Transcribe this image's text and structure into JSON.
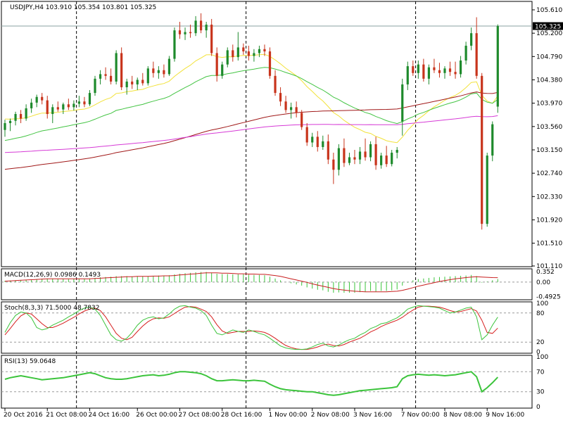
{
  "main_label": "USDJPY,H4  103.910 105.354 103.801 105.325",
  "macd_label": "MACD(12,26,9) 0.0986 0.1493",
  "stoch_label": "Stoch(8,3,3) 71.5000 48.7832",
  "rsi_label": "RSI(13) 59.0648",
  "current_price_label": "105.325",
  "colors": {
    "background": "#ffffff",
    "bull_candle": "#1e8a2c",
    "bear_candle": "#c8341c",
    "wick": "#333333",
    "ma_fast": "#f2e23a",
    "ma_mid": "#43c443",
    "ma_slow": "#a01818",
    "ma_long": "#d63ad6",
    "macd_hist": "#3cc43c",
    "macd_signal": "#c81e1e",
    "stoch_main": "#3cc43c",
    "stoch_signal": "#d61e1e",
    "rsi_line": "#3cc43c",
    "grid_dash": "#000000",
    "level_dash": "#9a9a9a",
    "price_line": "#8aa0a0"
  },
  "chart_data": [
    {
      "type": "candlestick",
      "series_label": "USDJPY,H4",
      "ohlc_last": {
        "open": 103.91,
        "high": 105.354,
        "low": 103.801,
        "close": 105.325
      },
      "y_ticks": [
        101.11,
        101.51,
        101.92,
        102.33,
        102.74,
        103.15,
        103.56,
        103.97,
        104.38,
        104.79,
        105.2,
        105.61
      ],
      "ylim": [
        101.11,
        105.61
      ],
      "x_ticks": [
        "20 Oct 2016",
        "21 Oct 08:00",
        "24 Oct 16:00",
        "26 Oct 00:00",
        "27 Oct 08:00",
        "28 Oct 16:00",
        "1 Nov 00:00",
        "2 Nov 08:00",
        "3 Nov 16:00",
        "7 Nov 00:00",
        "8 Nov 08:00",
        "9 Nov 16:00"
      ],
      "current_price": 105.325,
      "candles": [
        [
          103.5,
          103.68,
          103.38,
          103.62
        ],
        [
          103.62,
          103.7,
          103.48,
          103.66
        ],
        [
          103.66,
          103.82,
          103.58,
          103.78
        ],
        [
          103.78,
          103.85,
          103.62,
          103.7
        ],
        [
          103.7,
          103.95,
          103.66,
          103.88
        ],
        [
          103.88,
          104.05,
          103.8,
          103.98
        ],
        [
          103.98,
          104.12,
          103.9,
          104.08
        ],
        [
          104.08,
          104.15,
          103.95,
          104.02
        ],
        [
          104.02,
          104.1,
          103.7,
          103.78
        ],
        [
          103.78,
          103.95,
          103.62,
          103.9
        ],
        [
          103.9,
          104.0,
          103.82,
          103.86
        ],
        [
          103.86,
          103.98,
          103.78,
          103.95
        ],
        [
          103.95,
          104.05,
          103.85,
          103.9
        ],
        [
          103.9,
          104.02,
          103.84,
          103.96
        ],
        [
          103.96,
          104.1,
          103.9,
          104.0
        ],
        [
          104.0,
          104.08,
          103.9,
          103.95
        ],
        [
          103.95,
          104.2,
          103.92,
          104.15
        ],
        [
          104.15,
          104.45,
          104.1,
          104.4
        ],
        [
          104.4,
          104.55,
          104.3,
          104.48
        ],
        [
          104.48,
          104.6,
          104.38,
          104.45
        ],
        [
          104.45,
          104.58,
          104.3,
          104.35
        ],
        [
          104.35,
          104.9,
          104.3,
          104.85
        ],
        [
          104.85,
          104.95,
          104.2,
          104.25
        ],
        [
          104.25,
          104.4,
          104.12,
          104.35
        ],
        [
          104.35,
          104.45,
          104.22,
          104.3
        ],
        [
          104.3,
          104.42,
          104.2,
          104.38
        ],
        [
          104.38,
          104.5,
          104.28,
          104.32
        ],
        [
          104.32,
          104.62,
          104.28,
          104.58
        ],
        [
          104.58,
          104.7,
          104.42,
          104.5
        ],
        [
          104.5,
          104.62,
          104.4,
          104.55
        ],
        [
          104.55,
          104.65,
          104.42,
          104.48
        ],
        [
          104.48,
          104.8,
          104.45,
          104.75
        ],
        [
          104.75,
          105.3,
          104.7,
          105.25
        ],
        [
          105.25,
          105.4,
          105.1,
          105.18
        ],
        [
          105.18,
          105.3,
          105.08,
          105.22
        ],
        [
          105.22,
          105.35,
          105.12,
          105.2
        ],
        [
          105.2,
          105.5,
          105.15,
          105.42
        ],
        [
          105.42,
          105.55,
          105.2,
          105.25
        ],
        [
          105.25,
          105.4,
          105.12,
          105.35
        ],
        [
          105.35,
          105.45,
          104.8,
          104.85
        ],
        [
          104.85,
          104.95,
          104.35,
          104.45
        ],
        [
          104.45,
          104.7,
          104.4,
          104.65
        ],
        [
          104.65,
          104.95,
          104.6,
          104.9
        ],
        [
          104.9,
          105.0,
          104.7,
          104.78
        ],
        [
          104.78,
          105.22,
          104.72,
          104.95
        ],
        [
          104.95,
          105.02,
          104.82,
          104.88
        ],
        [
          104.88,
          104.98,
          104.72,
          104.8
        ],
        [
          104.8,
          104.92,
          104.7,
          104.85
        ],
        [
          104.85,
          104.98,
          104.78,
          104.92
        ],
        [
          104.92,
          105.0,
          104.8,
          104.88
        ],
        [
          104.88,
          104.95,
          104.4,
          104.45
        ],
        [
          104.45,
          104.55,
          104.1,
          104.15
        ],
        [
          104.15,
          104.25,
          103.92,
          104.0
        ],
        [
          104.0,
          104.1,
          103.8,
          103.85
        ],
        [
          103.85,
          103.98,
          103.7,
          103.9
        ],
        [
          103.9,
          104.0,
          103.72,
          103.8
        ],
        [
          103.8,
          103.85,
          103.5,
          103.55
        ],
        [
          103.55,
          103.62,
          103.22,
          103.28
        ],
        [
          103.28,
          103.45,
          103.2,
          103.38
        ],
        [
          103.38,
          103.48,
          103.12,
          103.2
        ],
        [
          103.2,
          103.4,
          103.15,
          103.3
        ],
        [
          103.3,
          103.42,
          102.9,
          102.98
        ],
        [
          102.98,
          103.1,
          102.55,
          102.8
        ],
        [
          102.8,
          103.25,
          102.7,
          103.18
        ],
        [
          103.18,
          103.35,
          102.85,
          102.92
        ],
        [
          102.92,
          103.1,
          102.88,
          103.02
        ],
        [
          103.02,
          103.15,
          102.9,
          102.98
        ],
        [
          102.98,
          103.2,
          102.9,
          103.12
        ],
        [
          103.12,
          103.35,
          102.96,
          103.02
        ],
        [
          103.02,
          103.3,
          102.95,
          103.25
        ],
        [
          103.25,
          103.38,
          102.8,
          102.88
        ],
        [
          102.88,
          103.1,
          102.82,
          103.05
        ],
        [
          103.05,
          103.22,
          102.85,
          102.9
        ],
        [
          102.9,
          103.15,
          102.86,
          103.1
        ],
        [
          103.1,
          103.2,
          103.0,
          103.15
        ],
        [
          103.65,
          104.4,
          103.4,
          104.3
        ],
        [
          104.3,
          104.7,
          104.2,
          104.62
        ],
        [
          104.62,
          104.72,
          104.45,
          104.5
        ],
        [
          104.5,
          104.72,
          104.4,
          104.65
        ],
        [
          104.65,
          104.75,
          104.35,
          104.4
        ],
        [
          104.4,
          104.65,
          104.3,
          104.6
        ],
        [
          104.6,
          104.75,
          104.5,
          104.55
        ],
        [
          104.55,
          104.68,
          104.42,
          104.5
        ],
        [
          104.5,
          104.62,
          104.4,
          104.58
        ],
        [
          104.58,
          104.7,
          104.45,
          104.52
        ],
        [
          104.52,
          104.7,
          104.4,
          104.48
        ],
        [
          104.48,
          104.8,
          104.42,
          104.72
        ],
        [
          104.72,
          105.05,
          104.65,
          104.98
        ],
        [
          104.98,
          105.3,
          104.9,
          105.2
        ],
        [
          105.2,
          105.48,
          104.4,
          104.45
        ],
        [
          104.45,
          104.5,
          101.75,
          101.85
        ],
        [
          101.85,
          103.1,
          101.8,
          103.05
        ],
        [
          103.05,
          103.65,
          102.95,
          103.6
        ],
        [
          103.91,
          105.354,
          103.801,
          105.325
        ]
      ]
    },
    {
      "type": "line",
      "series_label": "MACD(12,26,9)",
      "values_last": {
        "macd": 0.0986,
        "signal": 0.1493
      },
      "y_ticks": [
        0.352,
        0.0,
        -0.4925
      ],
      "ylim": [
        -0.55,
        0.4
      ],
      "histogram": [
        0.04,
        0.05,
        0.06,
        0.07,
        0.08,
        0.09,
        0.1,
        0.11,
        0.12,
        0.12,
        0.11,
        0.11,
        0.1,
        0.11,
        0.11,
        0.11,
        0.12,
        0.14,
        0.16,
        0.17,
        0.18,
        0.2,
        0.2,
        0.2,
        0.19,
        0.19,
        0.19,
        0.2,
        0.21,
        0.22,
        0.22,
        0.23,
        0.26,
        0.28,
        0.3,
        0.31,
        0.33,
        0.34,
        0.34,
        0.32,
        0.28,
        0.27,
        0.27,
        0.26,
        0.26,
        0.26,
        0.25,
        0.24,
        0.24,
        0.23,
        0.18,
        0.12,
        0.06,
        0.0,
        -0.04,
        -0.08,
        -0.12,
        -0.18,
        -0.22,
        -0.26,
        -0.28,
        -0.33,
        -0.36,
        -0.35,
        -0.36,
        -0.36,
        -0.36,
        -0.34,
        -0.33,
        -0.3,
        -0.32,
        -0.3,
        -0.3,
        -0.28,
        -0.25,
        -0.12,
        -0.02,
        0.06,
        0.1,
        0.12,
        0.14,
        0.16,
        0.17,
        0.18,
        0.19,
        0.2,
        0.21,
        0.22,
        0.24,
        0.2,
        -0.02,
        0.02,
        0.06,
        0.1
      ],
      "signal": [
        0.03,
        0.04,
        0.05,
        0.06,
        0.07,
        0.08,
        0.09,
        0.1,
        0.11,
        0.11,
        0.11,
        0.11,
        0.11,
        0.11,
        0.11,
        0.11,
        0.11,
        0.12,
        0.13,
        0.14,
        0.15,
        0.16,
        0.17,
        0.18,
        0.18,
        0.19,
        0.19,
        0.19,
        0.2,
        0.2,
        0.21,
        0.21,
        0.22,
        0.24,
        0.25,
        0.27,
        0.28,
        0.3,
        0.31,
        0.31,
        0.31,
        0.3,
        0.3,
        0.29,
        0.28,
        0.28,
        0.27,
        0.27,
        0.26,
        0.26,
        0.24,
        0.22,
        0.19,
        0.15,
        0.11,
        0.07,
        0.03,
        -0.01,
        -0.06,
        -0.1,
        -0.14,
        -0.18,
        -0.22,
        -0.25,
        -0.27,
        -0.29,
        -0.31,
        -0.32,
        -0.33,
        -0.33,
        -0.33,
        -0.33,
        -0.33,
        -0.32,
        -0.31,
        -0.28,
        -0.24,
        -0.19,
        -0.14,
        -0.1,
        -0.06,
        -0.02,
        0.02,
        0.05,
        0.08,
        0.11,
        0.13,
        0.15,
        0.17,
        0.18,
        0.17,
        0.16,
        0.15,
        0.149
      ]
    },
    {
      "type": "line",
      "series_label": "Stoch(8,3,3)",
      "values_last": {
        "main": 71.5,
        "signal": 48.7832
      },
      "y_ticks": [
        100,
        80,
        20,
        0
      ],
      "ylim": [
        0,
        100
      ],
      "main": [
        40,
        60,
        75,
        82,
        80,
        70,
        50,
        45,
        48,
        55,
        60,
        65,
        72,
        78,
        85,
        90,
        92,
        88,
        75,
        55,
        35,
        25,
        22,
        28,
        40,
        55,
        65,
        70,
        72,
        68,
        70,
        78,
        88,
        94,
        95,
        92,
        90,
        85,
        75,
        55,
        38,
        35,
        40,
        45,
        42,
        40,
        45,
        42,
        38,
        35,
        28,
        20,
        12,
        8,
        6,
        5,
        5,
        6,
        10,
        15,
        18,
        12,
        10,
        14,
        20,
        25,
        28,
        35,
        40,
        48,
        52,
        58,
        60,
        65,
        70,
        78,
        88,
        92,
        95,
        94,
        93,
        92,
        90,
        85,
        80,
        82,
        86,
        90,
        92,
        72,
        25,
        35,
        55,
        71.5
      ],
      "signal": [
        35,
        48,
        62,
        74,
        80,
        78,
        68,
        58,
        50,
        50,
        54,
        59,
        65,
        71,
        78,
        84,
        88,
        90,
        85,
        72,
        55,
        38,
        28,
        25,
        30,
        42,
        53,
        62,
        68,
        70,
        69,
        72,
        79,
        86,
        92,
        93,
        92,
        88,
        83,
        72,
        56,
        43,
        38,
        40,
        42,
        42,
        42,
        43,
        42,
        40,
        35,
        28,
        20,
        13,
        9,
        6,
        5,
        5,
        7,
        10,
        14,
        16,
        13,
        12,
        15,
        20,
        24,
        28,
        34,
        41,
        46,
        52,
        57,
        61,
        65,
        71,
        79,
        86,
        92,
        94,
        94,
        93,
        92,
        89,
        85,
        82,
        83,
        86,
        89,
        84,
        65,
        40,
        38,
        48.78
      ]
    },
    {
      "type": "line",
      "series_label": "RSI(13)",
      "values_last": {
        "rsi": 59.0648
      },
      "y_ticks": [
        100,
        70,
        30,
        0
      ],
      "ylim": [
        0,
        100
      ],
      "values": [
        55,
        58,
        60,
        62,
        60,
        58,
        56,
        54,
        55,
        56,
        57,
        58,
        60,
        62,
        64,
        66,
        68,
        66,
        62,
        58,
        56,
        55,
        55,
        56,
        58,
        60,
        62,
        63,
        64,
        62,
        63,
        65,
        68,
        70,
        70,
        69,
        68,
        66,
        62,
        56,
        52,
        52,
        53,
        54,
        53,
        52,
        52,
        53,
        52,
        51,
        45,
        40,
        36,
        34,
        33,
        32,
        31,
        30,
        30,
        28,
        26,
        24,
        23,
        24,
        26,
        28,
        30,
        32,
        33,
        34,
        35,
        36,
        37,
        38,
        40,
        56,
        62,
        64,
        65,
        64,
        63,
        64,
        63,
        62,
        63,
        64,
        66,
        68,
        70,
        60,
        30,
        38,
        48,
        59.06
      ]
    }
  ]
}
